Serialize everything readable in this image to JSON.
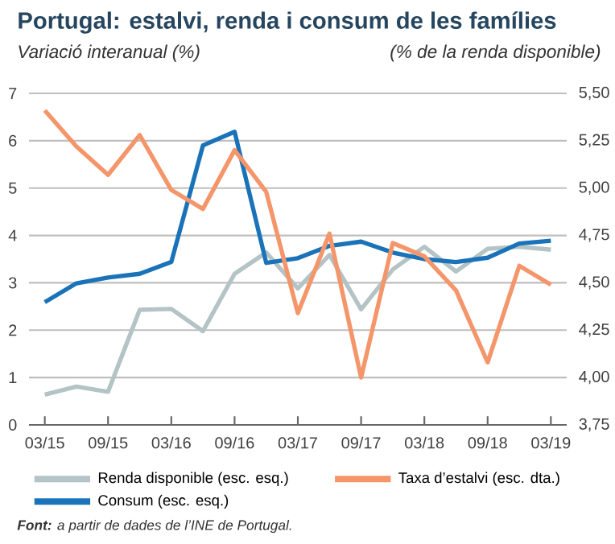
{
  "chart_data": {
    "type": "line",
    "title": "Portugal: estalvi, renda i consum de les famílies",
    "ylabel": "Variació interanual (%)",
    "y2label": "(% de la renda disponible)",
    "categories": [
      "03/15",
      null,
      "09/15",
      null,
      "03/16",
      null,
      "09/16",
      null,
      "03/17",
      null,
      "09/17",
      null,
      "03/18",
      null,
      "09/18",
      null,
      "03/19"
    ],
    "series": [
      {
        "name": "Renda disponible (esc. esq.)",
        "color": "#b4c3c6",
        "values": [
          0.64,
          0.81,
          0.7,
          2.43,
          2.45,
          1.98,
          3.19,
          3.64,
          2.88,
          3.59,
          2.44,
          3.28,
          3.76,
          3.24,
          3.72,
          3.76,
          3.7
        ]
      },
      {
        "name": "Taxa d’estalvi (esc. dta.)",
        "color": "#f4956a",
        "axis": "y2",
        "values": [
          5.41,
          5.22,
          5.07,
          5.28,
          4.99,
          4.89,
          5.2,
          4.98,
          4.34,
          4.76,
          4.0,
          4.71,
          4.64,
          4.46,
          4.08,
          4.59,
          4.49
        ]
      },
      {
        "name": "Consum (esc. esq.)",
        "color": "#1a72b8",
        "values": [
          2.59,
          2.99,
          3.11,
          3.19,
          3.44,
          5.9,
          6.19,
          3.42,
          3.52,
          3.78,
          3.87,
          3.64,
          3.5,
          3.44,
          3.53,
          3.83,
          3.89
        ]
      }
    ],
    "ylim": [
      0,
      7
    ],
    "yticks": [
      0,
      1,
      2,
      3,
      4,
      5,
      6,
      7
    ],
    "y2lim": [
      3.75,
      5.5
    ],
    "y2ticks": [
      {
        "value": 3.75,
        "label": "3,75"
      },
      {
        "value": 4.0,
        "label": "4,00"
      },
      {
        "value": 4.25,
        "label": "4,25"
      },
      {
        "value": 4.5,
        "label": "4,50"
      },
      {
        "value": 4.75,
        "label": "4,75"
      },
      {
        "value": 5.0,
        "label": "5,00"
      },
      {
        "value": 5.25,
        "label": "5,25"
      },
      {
        "value": 5.5,
        "label": "5,50"
      }
    ],
    "grid": "y",
    "legend": "bottom",
    "marker": "none",
    "line_style": "solid",
    "annotations": [
      "**Font:** a partir de dades de l’INE de Portugal."
    ]
  }
}
